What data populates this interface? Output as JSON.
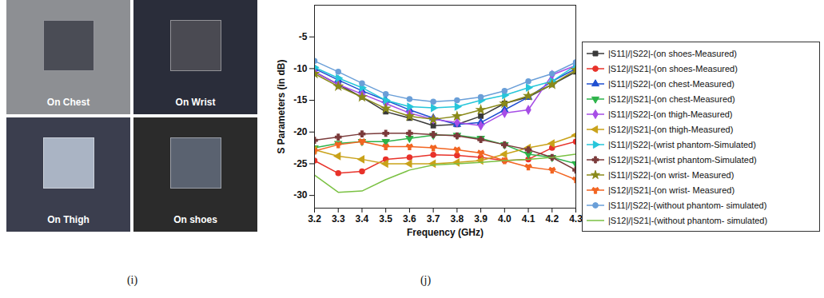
{
  "figure": {
    "panels": [
      {
        "caption": "(i)",
        "photos": [
          "On Chest",
          "On Wrist",
          "On Thigh",
          "On shoes"
        ]
      }
    ]
  },
  "chart_data": {
    "type": "line",
    "caption": "(j)",
    "x_label": "Frequency (GHz)",
    "y_label": "S Parameters (in dB)",
    "x": [
      3.2,
      3.3,
      3.4,
      3.5,
      3.6,
      3.7,
      3.8,
      3.9,
      4.0,
      4.1,
      4.2,
      4.3
    ],
    "xlim": [
      3.2,
      4.3
    ],
    "xticks": [
      3.2,
      3.3,
      3.4,
      3.5,
      3.6,
      3.7,
      3.8,
      3.9,
      {
        "value": 4.0,
        "label": "4.0"
      },
      4.1,
      4.2,
      4.3
    ],
    "ylim": [
      -32,
      0
    ],
    "yticks": [
      -5,
      -10,
      -15,
      -20,
      -25,
      -30
    ],
    "legend": "right",
    "series": [
      {
        "name": "|S11|/|S22|-(on shoes-Measured)",
        "color": "#3a3a3a",
        "marker": "square",
        "values": [
          -10.5,
          -12.5,
          -14.5,
          -16.8,
          -17.8,
          -19.0,
          -18.8,
          -17.5,
          -15.5,
          -14.5,
          -12.5,
          -10.5
        ]
      },
      {
        "name": "|S12|/|S21|-(on shoes-Measured)",
        "color": "#e8322a",
        "marker": "circle",
        "values": [
          -24.5,
          -26.5,
          -26.2,
          -24.3,
          -24.0,
          -23.6,
          -23.7,
          -24.0,
          -24.5,
          -24.3,
          -22.5,
          -21.5
        ]
      },
      {
        "name": "|S11|/|S22|-(on chest-Measured)",
        "color": "#1f4fd1",
        "marker": "triangle",
        "values": [
          -10.0,
          -11.8,
          -13.5,
          -15.0,
          -16.5,
          -17.8,
          -18.8,
          -18.5,
          -16.5,
          -14.5,
          -12.0,
          -10.0
        ]
      },
      {
        "name": "|S12|/|S21|-(on chest-Measured)",
        "color": "#2db34a",
        "marker": "triangle-down",
        "values": [
          -22.5,
          -21.8,
          -21.5,
          -21.5,
          -21.0,
          -20.5,
          -20.5,
          -21.0,
          -22.0,
          -23.5,
          -24.0,
          -25.0
        ]
      },
      {
        "name": "|S11|/|S22|-(on thigh-Measured)",
        "color": "#a64de6",
        "marker": "diamond",
        "values": [
          -10.5,
          -12.5,
          -14.0,
          -15.5,
          -17.0,
          -18.0,
          -18.5,
          -19.0,
          -17.0,
          -16.5,
          -11.0,
          -9.5
        ]
      },
      {
        "name": "|S12|/|S21|-(on thigh-Measured)",
        "color": "#c9a21a",
        "marker": "triangle-left",
        "values": [
          -22.8,
          -23.8,
          -24.3,
          -25.0,
          -25.0,
          -25.0,
          -24.8,
          -24.5,
          -23.5,
          -22.5,
          -21.8,
          -20.5
        ]
      },
      {
        "name": "|S11|/|S22|-(wrist phantom-Simulated)",
        "color": "#26c6da",
        "marker": "triangle-right",
        "values": [
          -9.8,
          -11.5,
          -13.0,
          -15.0,
          -16.0,
          -16.2,
          -16.0,
          -15.0,
          -14.2,
          -13.0,
          -12.0,
          -9.5
        ]
      },
      {
        "name": "|S12|/|S21|-(wrist phantom-Simulated)",
        "color": "#7b3b3b",
        "marker": "cross",
        "values": [
          -21.3,
          -20.8,
          -20.3,
          -20.2,
          -20.2,
          -20.4,
          -20.6,
          -21.2,
          -22.0,
          -22.8,
          -24.0,
          -26.0
        ]
      },
      {
        "name": "|S11|/|S22|-(on wrist- Measured)",
        "color": "#8a8a1a",
        "marker": "star",
        "values": [
          -10.8,
          -12.8,
          -14.5,
          -16.3,
          -17.5,
          -18.0,
          -17.5,
          -16.5,
          -15.5,
          -14.3,
          -12.5,
          -10.2
        ]
      },
      {
        "name": "|S12|/|S21|-(on wrist- Measured)",
        "color": "#f26522",
        "marker": "wye",
        "values": [
          -23.0,
          -22.0,
          -21.5,
          -22.3,
          -22.3,
          -22.5,
          -22.8,
          -23.3,
          -24.5,
          -25.5,
          -26.0,
          -27.5
        ]
      },
      {
        "name": "|S11|/|S22|-(without phantom- simulated)",
        "color": "#6a9fd8",
        "marker": "circle",
        "values": [
          -8.8,
          -10.5,
          -12.3,
          -14.0,
          -14.8,
          -15.2,
          -15.0,
          -14.5,
          -13.5,
          -12.0,
          -10.8,
          -9.0
        ]
      },
      {
        "name": "|S12|/|S21|-(without phantom- simulated)",
        "color": "#7ac142",
        "marker": "none",
        "values": [
          -26.8,
          -29.5,
          -29.3,
          -27.5,
          -26.0,
          -25.2,
          -25.0,
          -24.8,
          -24.5,
          -24.3,
          -24.0,
          -23.5
        ]
      }
    ]
  }
}
